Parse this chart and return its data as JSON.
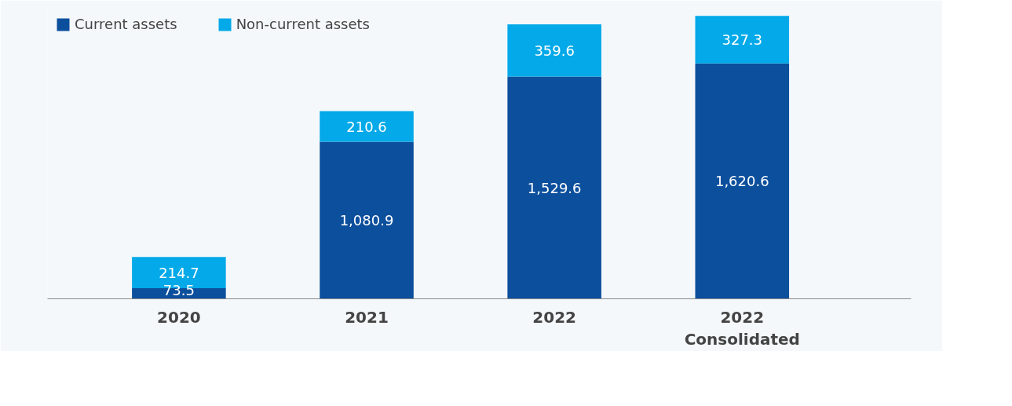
{
  "chart_data": {
    "type": "bar",
    "stacked": true,
    "categories": [
      "2020",
      "2021",
      "2022",
      "2022"
    ],
    "series": [
      {
        "name": "Current assets",
        "color": "#0c4f9c",
        "values": [
          73.5,
          1080.9,
          1529.6,
          1620.6
        ],
        "value_labels": [
          "73.5",
          "1,080.9",
          "1,529.6",
          "1,620.6"
        ]
      },
      {
        "name": "Non-current assets",
        "color": "#03a9e8",
        "values": [
          214.7,
          210.6,
          359.6,
          327.3
        ],
        "value_labels": [
          "214.7",
          "210.6",
          "359.6",
          "327.3"
        ]
      }
    ],
    "ylim": [
      0,
      2000
    ],
    "tick_labels": "x",
    "grid": false,
    "legend": "top left",
    "annotations": [
      "Consolidated"
    ]
  }
}
